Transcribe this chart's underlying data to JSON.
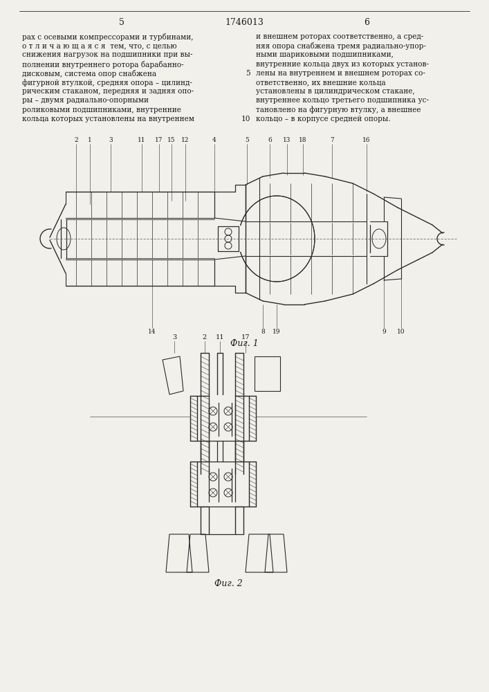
{
  "page_number_left": "5",
  "page_number_center": "1746013",
  "page_number_right": "6",
  "text_left_lines": [
    "рах с осевыми компрессорами и турбинами,",
    "о т л и ч а ю щ а я с я  тем, что, с целью",
    "снижения нагрузок на подшипники при вы-",
    "полнении внутреннего ротора барабанно-",
    "дисковым, система опор снабжена",
    "фигурной втулкой, средняя опора – цилинд-",
    "рическим стаканом, передняя и задняя опо-",
    "ры – двумя радиально-опорными",
    "роликовыми подшипниками, внутренние",
    "кольца которых установлены на внутреннем"
  ],
  "text_right_lines": [
    "и внешнем роторах соответственно, а сред-",
    "няя опора снабжена тремя радиально-упор-",
    "ными шариковыми подшипниками,",
    "внутренние кольца двух из которых установ-",
    "лены на внутреннем и внешнем роторах со-",
    "ответственно, их внешние кольца",
    "установлены в цилиндрическом стакане,",
    "внутреннее кольцо третьего подшипника ус-",
    "тановлено на фигурную втулку, а внешнее",
    "кольцо – в корпусе средней опоры."
  ],
  "fig1_caption": "Фuг. 1",
  "fig2_caption": "Фuг. 2",
  "bg_color": "#f2f0eb",
  "text_color": "#1a1a1a",
  "line_color": "#2a2a2a"
}
